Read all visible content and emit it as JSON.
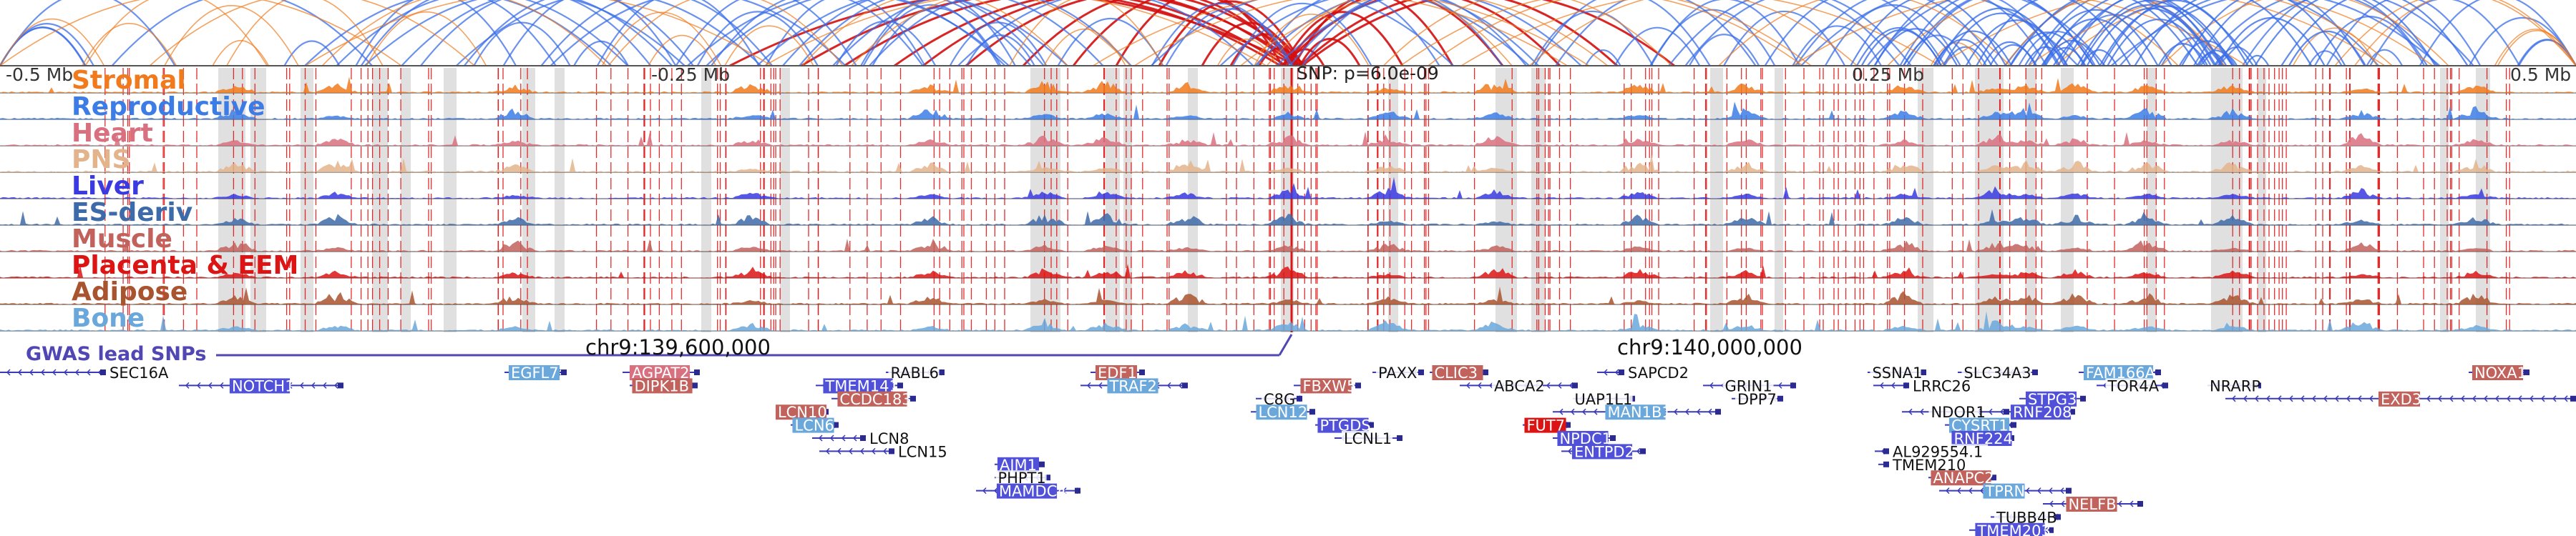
{
  "axis": {
    "left_label": "-0.5 Mb",
    "mid_left_label": "-0.25 Mb",
    "snp_label": "SNP: p=6.0e-09",
    "mid_right_label": "0.25 Mb",
    "right_label": "0.5 Mb"
  },
  "chromosome": {
    "label_1": "chr9:139,600,000",
    "label_2": "chr9:140,000,000"
  },
  "gwas_label": "GWAS lead SNPs",
  "tracks": [
    {
      "name": "Stromal",
      "color": "#f07a1c"
    },
    {
      "name": "Reproductive",
      "color": "#3c7ce6"
    },
    {
      "name": "Heart",
      "color": "#d9707f"
    },
    {
      "name": "PNS",
      "color": "#e3b48c"
    },
    {
      "name": "Liver",
      "color": "#3a3ae0"
    },
    {
      "name": "ES-deriv",
      "color": "#3d6aa8"
    },
    {
      "name": "Muscle",
      "color": "#c1625c"
    },
    {
      "name": "Placenta & EEM",
      "color": "#dc1414"
    },
    {
      "name": "Adipose",
      "color": "#a8542f"
    },
    {
      "name": "Bone",
      "color": "#6aa8dc"
    }
  ],
  "genes": [
    {
      "name": "SEC16A",
      "row": 0,
      "color": "none"
    },
    {
      "name": "NOTCH1",
      "row": 1,
      "color": "#5050d8"
    },
    {
      "name": "EGFL7",
      "row": 0,
      "color": "#6aa8dc"
    },
    {
      "name": "AGPAT2",
      "row": 0,
      "color": "#d9707f"
    },
    {
      "name": "DIPK1B",
      "row": 1,
      "color": "#c1625c"
    },
    {
      "name": "RABL6",
      "row": 0,
      "color": "none"
    },
    {
      "name": "TMEM141",
      "row": 1,
      "color": "#5050d8"
    },
    {
      "name": "CCDC183",
      "row": 2,
      "color": "#c1625c"
    },
    {
      "name": "LCN10",
      "row": 3,
      "color": "#c1625c"
    },
    {
      "name": "LCN6",
      "row": 4,
      "color": "#6aa8dc"
    },
    {
      "name": "LCN8",
      "row": 5,
      "color": "none"
    },
    {
      "name": "LCN15",
      "row": 6,
      "color": "none"
    },
    {
      "name": "EDF1",
      "row": 0,
      "color": "#c1625c"
    },
    {
      "name": "TRAF2",
      "row": 1,
      "color": "#6aa8dc"
    },
    {
      "name": "AJM1",
      "row": 7,
      "color": "#5050d8"
    },
    {
      "name": "PHPT1",
      "row": 8,
      "color": "none"
    },
    {
      "name": "MAMDC4",
      "row": 9,
      "color": "#5050d8"
    },
    {
      "name": "FBXW5",
      "row": 1,
      "color": "#c1625c"
    },
    {
      "name": "C8G",
      "row": 2,
      "color": "none"
    },
    {
      "name": "LCN12",
      "row": 3,
      "color": "#6aa8dc"
    },
    {
      "name": "PTGDS",
      "row": 4,
      "color": "#5050d8"
    },
    {
      "name": "LCNL1",
      "row": 5,
      "color": "none"
    },
    {
      "name": "PAXX",
      "row": 0,
      "color": "none"
    },
    {
      "name": "CLIC3",
      "row": 0,
      "color": "#c1625c"
    },
    {
      "name": "ABCA2",
      "row": 1,
      "color": "none"
    },
    {
      "name": "FUT7",
      "row": 4,
      "color": "#dc1414"
    },
    {
      "name": "NPDC1",
      "row": 5,
      "color": "#5050d8"
    },
    {
      "name": "ENTPD2",
      "row": 6,
      "color": "#5050d8"
    },
    {
      "name": "SAPCD2",
      "row": 0,
      "color": "none"
    },
    {
      "name": "UAP1L1",
      "row": 2,
      "color": "none"
    },
    {
      "name": "MAN1B1",
      "row": 3,
      "color": "#6aa8dc"
    },
    {
      "name": "GRIN1",
      "row": 1,
      "color": "none"
    },
    {
      "name": "DPP7",
      "row": 2,
      "color": "none"
    },
    {
      "name": "SSNA1",
      "row": 0,
      "color": "none"
    },
    {
      "name": "LRRC26",
      "row": 1,
      "color": "none"
    },
    {
      "name": "SLC34A3",
      "row": 0,
      "color": "none"
    },
    {
      "name": "NDOR1",
      "row": 3,
      "color": "none"
    },
    {
      "name": "CYSRT1",
      "row": 4,
      "color": "#6aa8dc"
    },
    {
      "name": "RNF224",
      "row": 5,
      "color": "#5050d8"
    },
    {
      "name": "AL929554.1",
      "row": 6,
      "color": "none"
    },
    {
      "name": "TMEM210",
      "row": 7,
      "color": "none"
    },
    {
      "name": "ANAPC2",
      "row": 8,
      "color": "#c1625c"
    },
    {
      "name": "TPRN",
      "row": 9,
      "color": "#6aa8dc"
    },
    {
      "name": "TUBB4B",
      "row": 11,
      "color": "none"
    },
    {
      "name": "TMEM203",
      "row": 12,
      "color": "#5050d8"
    },
    {
      "name": "STPG3",
      "row": 2,
      "color": "#5050d8"
    },
    {
      "name": "RNF208",
      "row": 3,
      "color": "#5050d8"
    },
    {
      "name": "NELFB",
      "row": 10,
      "color": "#c1625c"
    },
    {
      "name": "FAM166A",
      "row": 0,
      "color": "#6aa8dc"
    },
    {
      "name": "TOR4A",
      "row": 1,
      "color": "none"
    },
    {
      "name": "NRARP",
      "row": 1,
      "color": "none"
    },
    {
      "name": "NOXA1",
      "row": 0,
      "color": "#c1625c"
    },
    {
      "name": "EXD3",
      "row": 2,
      "color": "#c1625c"
    }
  ],
  "colors": {
    "arc_red": "#d40e0e",
    "arc_blue": "#3a6ee8",
    "arc_orange": "#f07a1c",
    "gwas": "#5046b4",
    "highlight": "#e0e0e0",
    "marker": "#e01616"
  }
}
